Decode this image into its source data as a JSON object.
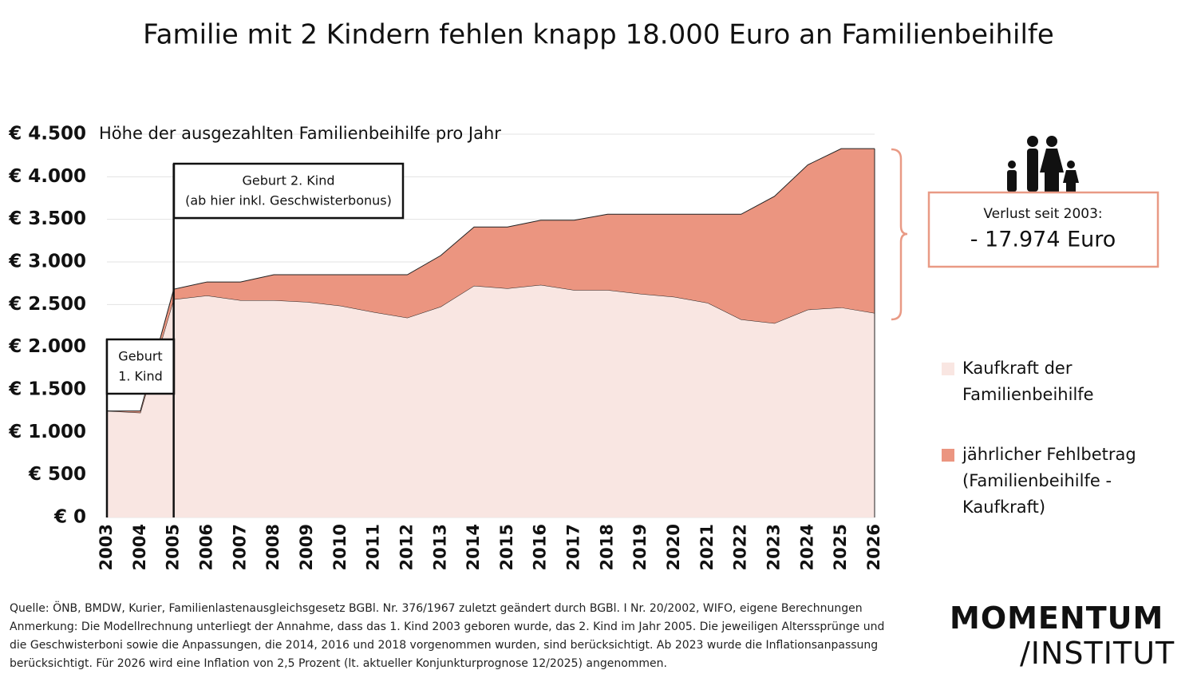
{
  "chart_data": {
    "type": "stacked_area",
    "title": "Familie mit 2 Kindern fehlen knapp 18.000 Euro an Familienbeihilfe",
    "subtitle": "Höhe der ausgezahlten Familienbeihilfe pro Jahr",
    "categories": [
      "2003",
      "2004",
      "2005",
      "2006",
      "2007",
      "2008",
      "2009",
      "2010",
      "2011",
      "2012",
      "2013",
      "2014",
      "2015",
      "2016",
      "2017",
      "2018",
      "2019",
      "2020",
      "2021",
      "2022",
      "2023",
      "2024",
      "2025",
      "2026"
    ],
    "series": [
      {
        "name": "Kaufkraft der Familienbeihilfe",
        "color": "#f9e6e2",
        "values": [
          1250,
          1230,
          2560,
          2605,
          2550,
          2550,
          2530,
          2485,
          2410,
          2345,
          2475,
          2720,
          2690,
          2730,
          2670,
          2670,
          2625,
          2590,
          2520,
          2325,
          2280,
          2440,
          2465,
          2400
        ]
      },
      {
        "name": "jährlicher Fehlbetrag (Familienbeihilfe - Kaufkraft)",
        "color": "#eb9580",
        "values": [
          0,
          20,
          120,
          160,
          215,
          300,
          320,
          365,
          440,
          505,
          600,
          690,
          720,
          760,
          820,
          890,
          935,
          970,
          1040,
          1235,
          1490,
          1700,
          1865,
          1930
        ]
      }
    ],
    "ylim": [
      0,
      4500
    ],
    "yticks": [
      {
        "value": 0,
        "label": "€ 0"
      },
      {
        "value": 500,
        "label": "€ 500"
      },
      {
        "value": 1000,
        "label": "€ 1.000"
      },
      {
        "value": 1500,
        "label": "€ 1.500"
      },
      {
        "value": 2000,
        "label": "€ 2.000"
      },
      {
        "value": 2500,
        "label": "€ 2.500"
      },
      {
        "value": 3000,
        "label": "€ 3.000"
      },
      {
        "value": 3500,
        "label": "€ 3.500"
      },
      {
        "value": 4000,
        "label": "€ 4.000"
      },
      {
        "value": 4500,
        "label": "€ 4.500"
      }
    ],
    "grid": true,
    "annotations": [
      {
        "lines": [
          "Geburt",
          "1. Kind"
        ]
      },
      {
        "lines": [
          "Geburt 2. Kind",
          "(ab hier inkl. Geschwisterbonus)"
        ]
      }
    ],
    "callout": {
      "label": "Verlust seit 2003:",
      "value_label": "- 17.974 Euro"
    },
    "source": "Quelle: ÖNB, BMDW, Kurier, Familienlastenausgleichsgesetz BGBl. Nr. 376/1967 zuletzt geändert durch BGBl. I Nr. 20/2002, WIFO, eigene Berechnungen",
    "note": "Anmerkung: Die Modellrechnung unterliegt der Annahme, dass das 1. Kind 2003 geboren wurde, das 2. Kind im Jahr 2005. Die jeweiligen Alterssprünge und die Geschwisterboni sowie die Anpassungen, die 2014, 2016 und 2018 vorgenommen wurden, sind berücksichtigt. Ab 2023 wurde die Inflationsanpassung berücksichtigt. Für 2026 wird eine Inflation von 2,5 Prozent (lt. aktueller Konjunkturprognose 12/2025) angenommen.",
    "logo": [
      "MOMENTUM",
      "/INSTITUT"
    ]
  }
}
